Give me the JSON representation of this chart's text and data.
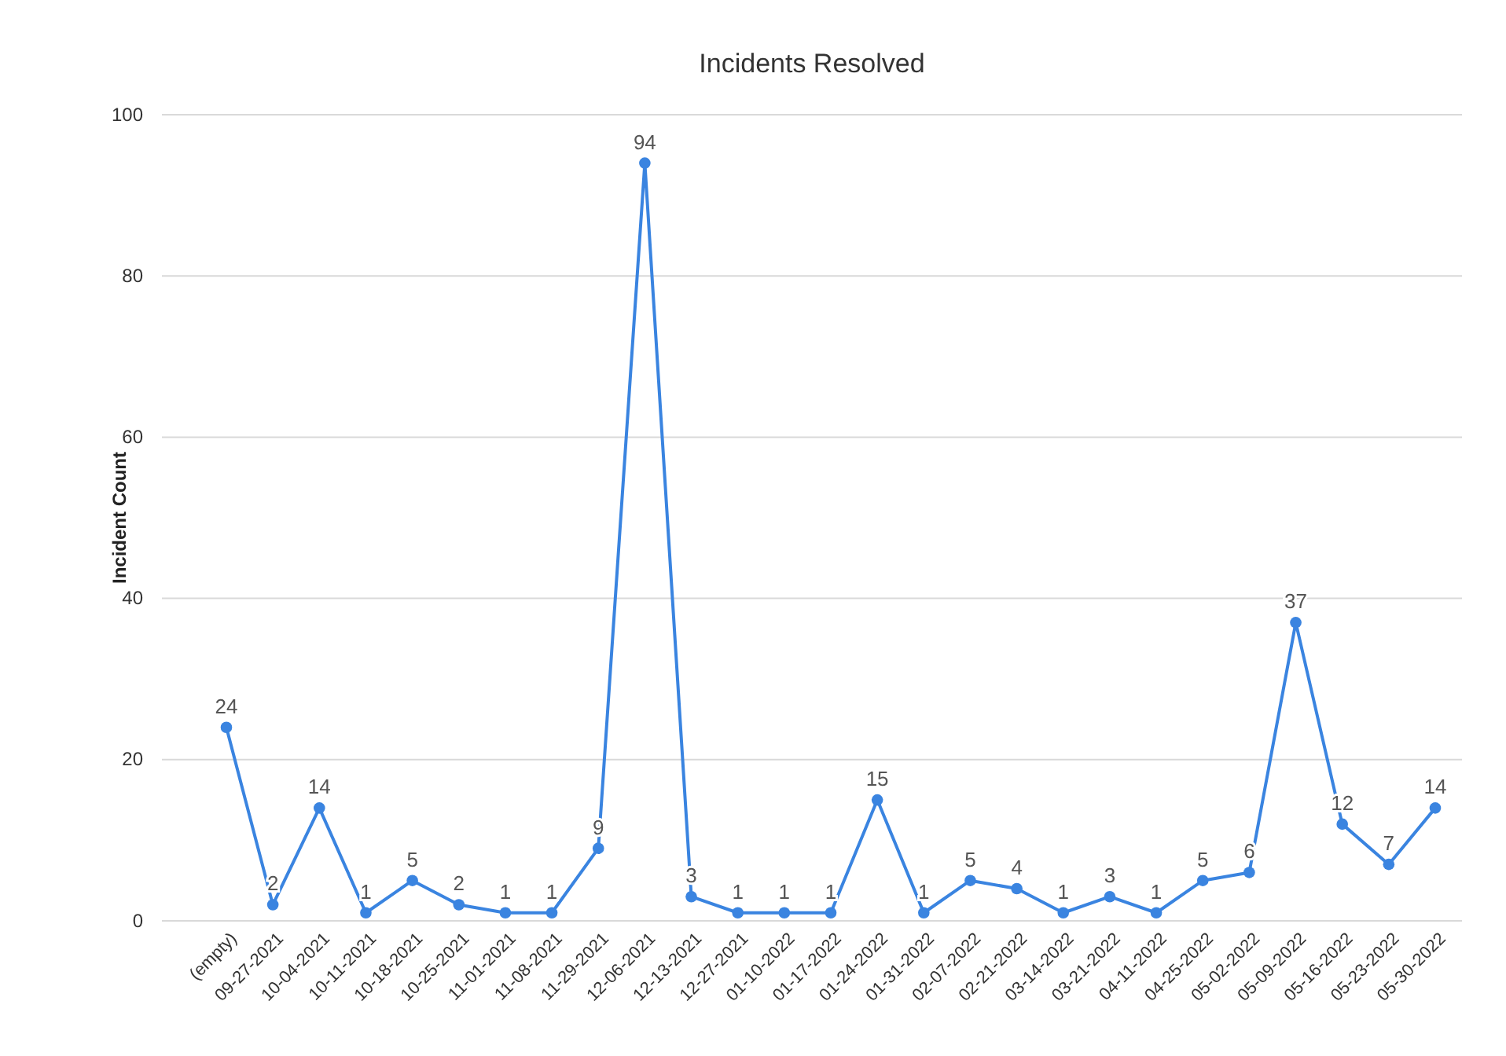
{
  "chart_data": {
    "type": "line",
    "title": "Incidents Resolved",
    "ylabel": "Incident Count",
    "categories": [
      "(empty)",
      "09-27-2021",
      "10-04-2021",
      "10-11-2021",
      "10-18-2021",
      "10-25-2021",
      "11-01-2021",
      "11-08-2021",
      "11-29-2021",
      "12-06-2021",
      "12-13-2021",
      "12-27-2021",
      "01-10-2022",
      "01-17-2022",
      "01-24-2022",
      "01-31-2022",
      "02-07-2022",
      "02-21-2022",
      "03-14-2022",
      "03-21-2022",
      "04-11-2022",
      "04-25-2022",
      "05-02-2022",
      "05-09-2022",
      "05-16-2022",
      "05-23-2022",
      "05-30-2022"
    ],
    "series": [
      {
        "color": "#3a84e0",
        "values": [
          24,
          2,
          14,
          1,
          5,
          2,
          1,
          1,
          9,
          94,
          3,
          1,
          1,
          1,
          15,
          1,
          5,
          4,
          1,
          3,
          1,
          5,
          6,
          37,
          12,
          7,
          14
        ]
      }
    ],
    "ylim": [
      0,
      100
    ],
    "yticks": [
      0,
      20,
      40,
      60,
      80,
      100
    ],
    "grid": "y",
    "data_labels": true,
    "marker": "circle",
    "line_style": "solid"
  }
}
